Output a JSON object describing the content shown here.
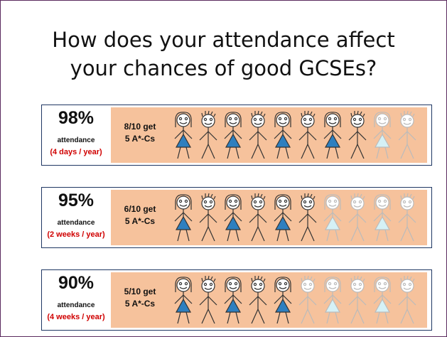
{
  "title": [
    "How does your attendance affect",
    "your chances of good GCSEs?"
  ],
  "rows": [
    {
      "percent": "98%",
      "label": "attendance",
      "absence": "(4 days / year)",
      "result": "8/10 get",
      "grade": "5 A*-Cs"
    },
    {
      "percent": "95%",
      "label": "attendance",
      "absence": "(2 weeks / year)",
      "result": "6/10 get",
      "grade": "5 A*-Cs"
    },
    {
      "percent": "90%",
      "label": "attendance",
      "absence": "(4 weeks / year)",
      "result": "5/10 get",
      "grade": "5 A*-Cs"
    }
  ]
}
